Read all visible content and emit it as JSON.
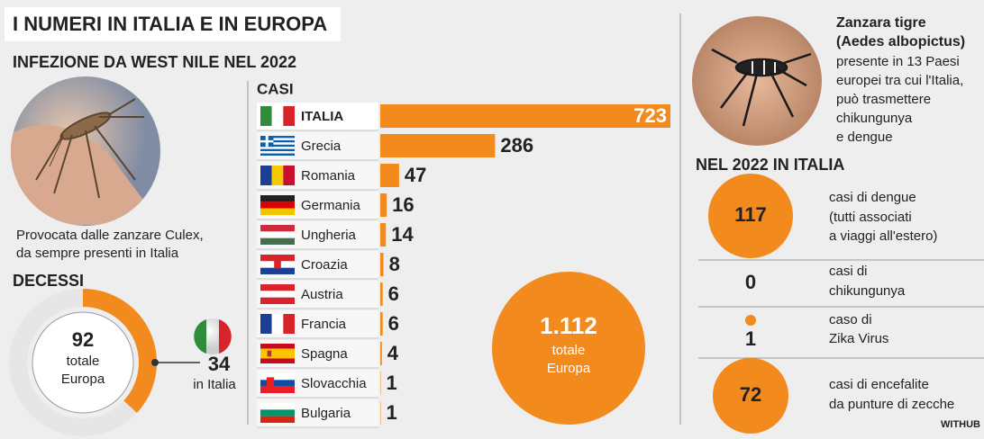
{
  "header": {
    "title": "I NUMERI IN ITALIA E IN EUROPA",
    "subtitle": "INFEZIONE DA WEST NILE NEL 2022"
  },
  "left": {
    "caption": [
      "Provocata dalle zanzare  Culex,",
      "da sempre  presenti in Italia"
    ]
  },
  "chart_data": [
    {
      "type": "bar",
      "title": "CASI",
      "categories": [
        "ITALIA",
        "Grecia",
        "Romania",
        "Germania",
        "Ungheria",
        "Croazia",
        "Austria",
        "Francia",
        "Spagna",
        "Slovacchia",
        "Bulgaria"
      ],
      "values": [
        723,
        286,
        47,
        16,
        14,
        8,
        6,
        6,
        4,
        1,
        1
      ],
      "color": "#f28a1e"
    },
    {
      "type": "donut",
      "title": "DECESSI",
      "total": 92,
      "total_text": [
        "totale",
        "Europa"
      ],
      "part": 34,
      "part_text": "in Italia",
      "color": "#f28a1e",
      "track_color": "#e6e6e6"
    }
  ],
  "total_box": {
    "value": "1.112",
    "lines": [
      "totale",
      "Europa"
    ]
  },
  "right": {
    "species": [
      "Zanzara tigre",
      "(Aedes albopictus)"
    ],
    "description": [
      "presente in 13 Paesi",
      "europei tra cui l'Italia,",
      "può trasmettere",
      "chikungunya",
      "e dengue"
    ],
    "section_title": "NEL 2022 IN ITALIA",
    "items": [
      {
        "value": "117",
        "text": [
          "casi di dengue",
          "(tutti associati",
          "a viaggi all'estero)"
        ]
      },
      {
        "value": "0",
        "text": [
          "casi di",
          "chikungunya"
        ]
      },
      {
        "value": "1",
        "text": [
          "caso di",
          "Zika Virus"
        ]
      },
      {
        "value": "72",
        "text": [
          "casi di encefalite",
          "da punture di zecche"
        ]
      }
    ]
  },
  "credit": "WITHUB"
}
